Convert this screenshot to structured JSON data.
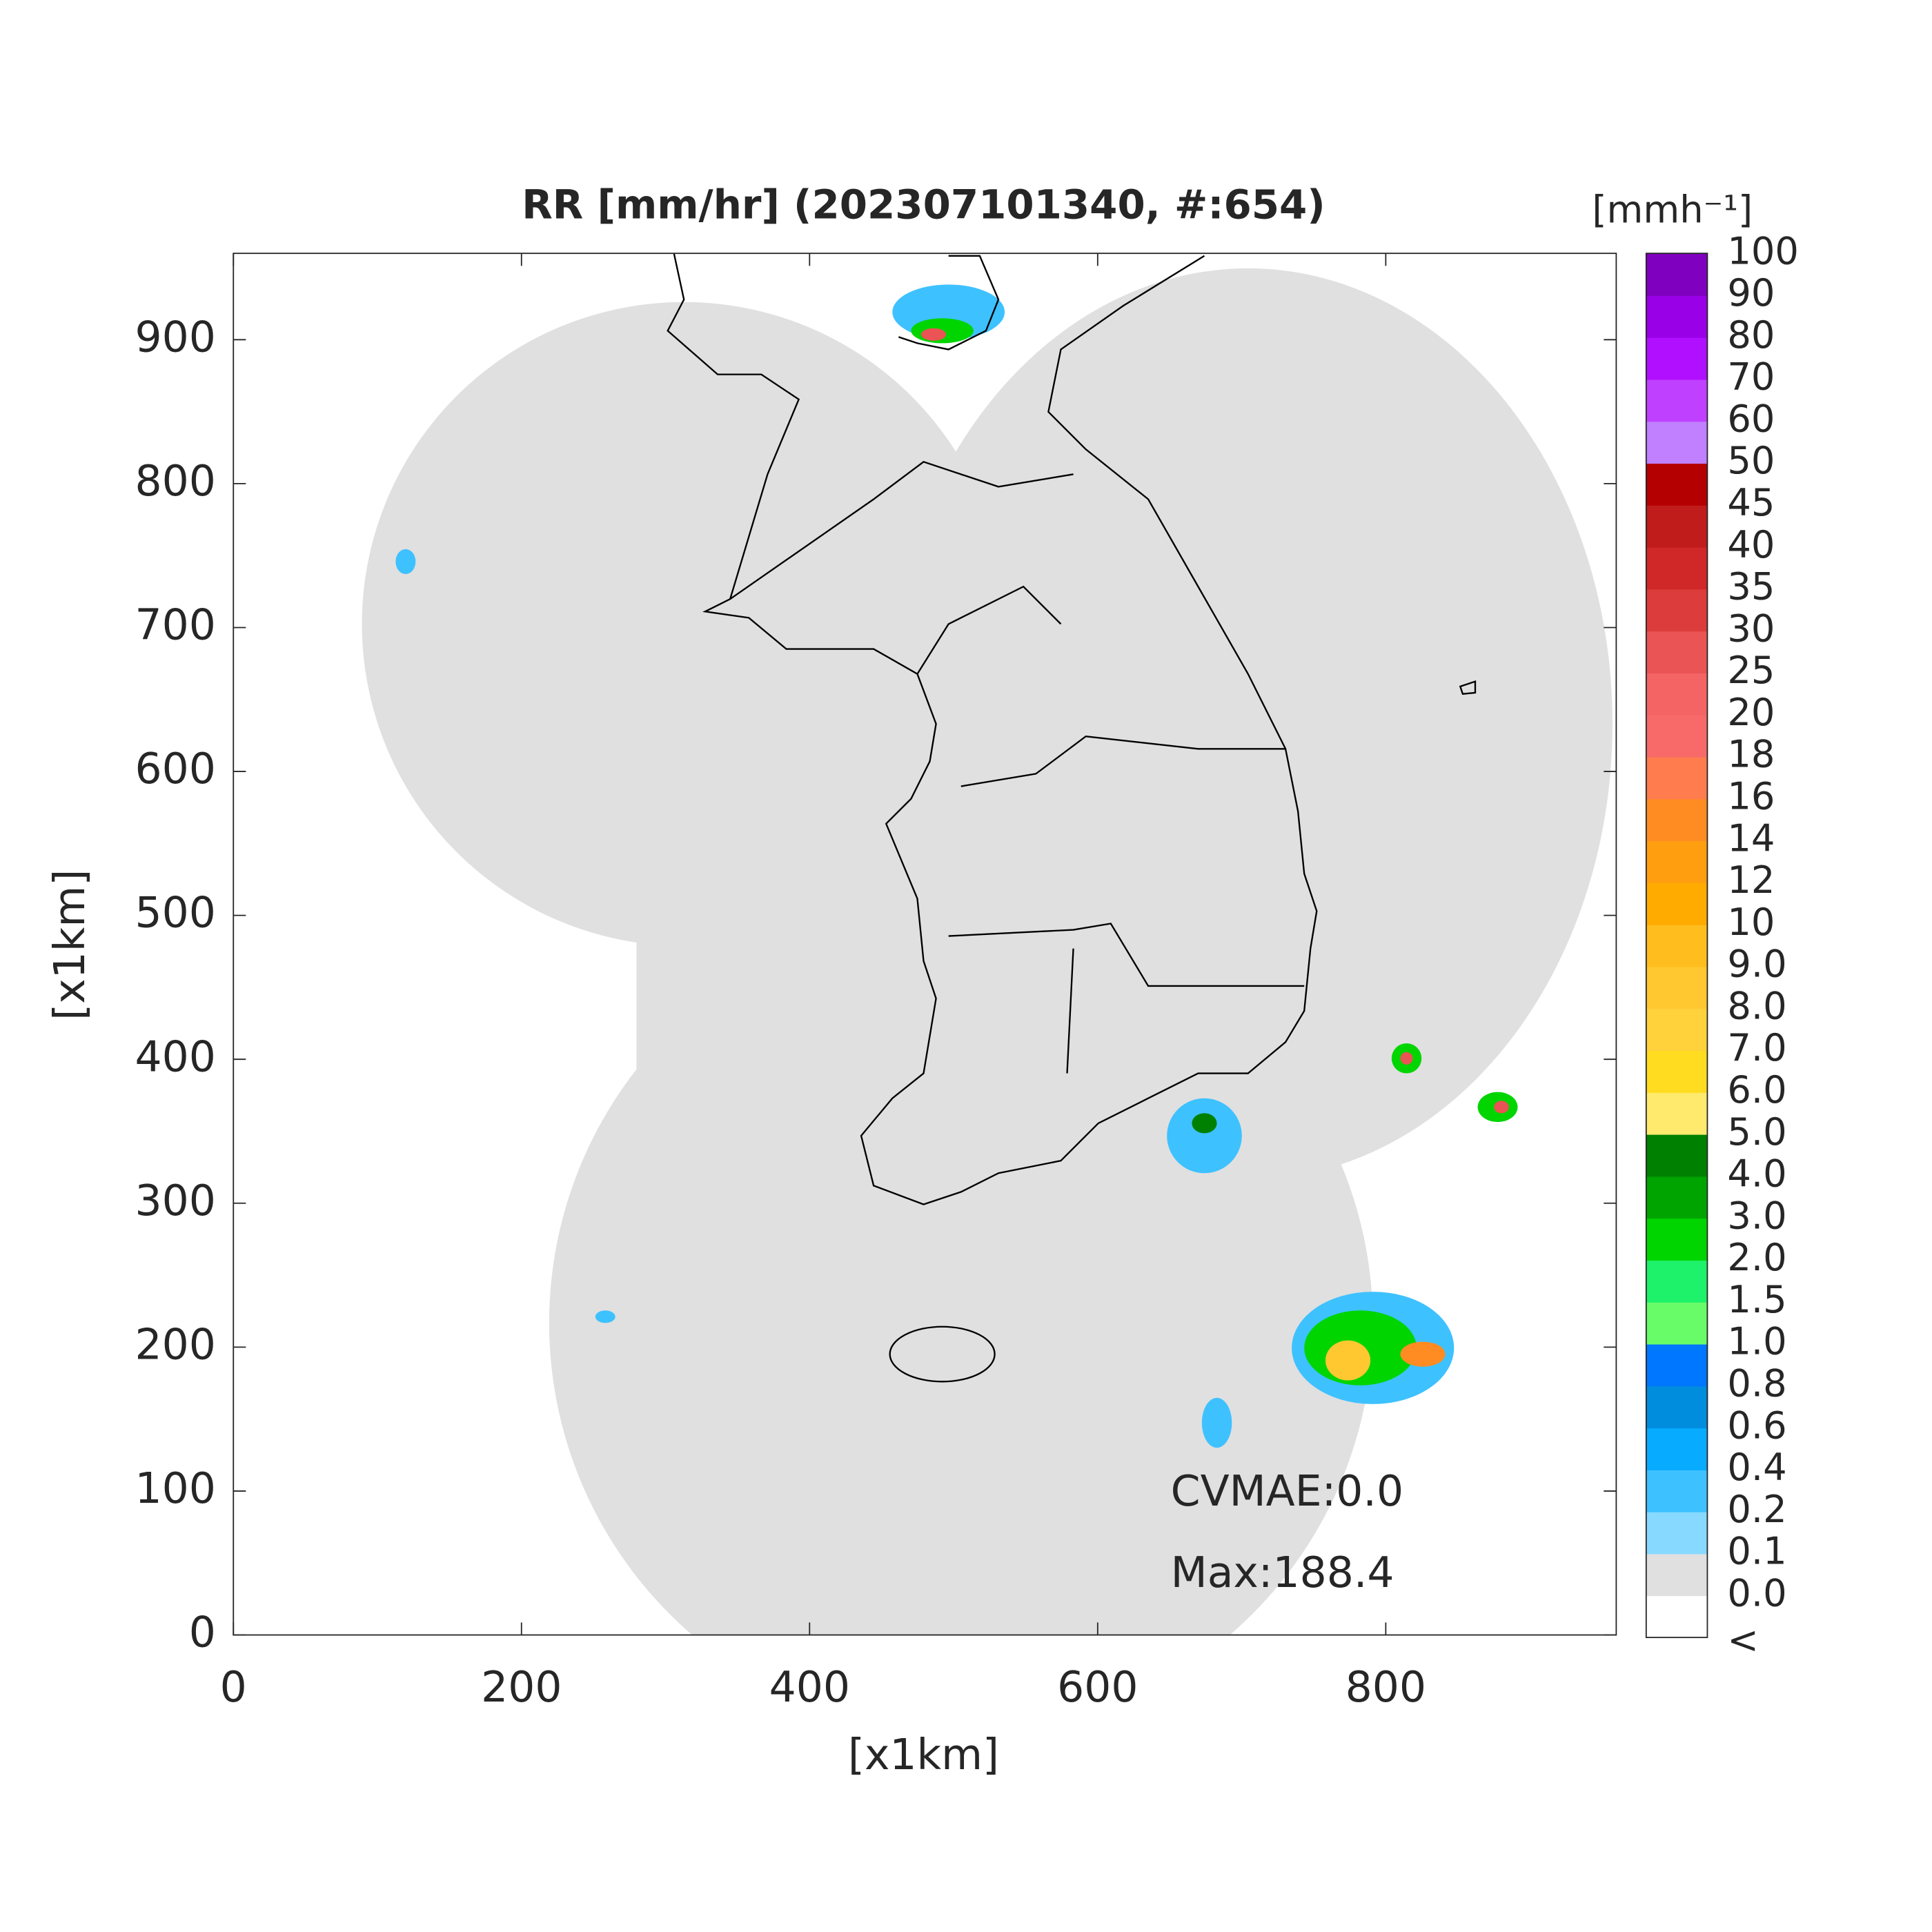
{
  "chart_data": {
    "type": "radar-map",
    "title": "RR [mm/hr] (202307101340, #:654)",
    "xlabel": "[x1km]",
    "ylabel": "[x1km]",
    "xlim": [
      0,
      960
    ],
    "ylim": [
      0,
      960
    ],
    "xticks": [
      0,
      200,
      400,
      600,
      800
    ],
    "yticks": [
      0,
      100,
      200,
      300,
      400,
      500,
      600,
      700,
      800,
      900
    ],
    "annotations": [
      "CVMAE:0.0",
      "Max:188.4"
    ],
    "colorbar": {
      "unit": "[mmh⁻¹]",
      "levels": [
        "<",
        "0.0",
        "0.1",
        "0.2",
        "0.4",
        "0.6",
        "0.8",
        "1.0",
        "1.5",
        "2.0",
        "3.0",
        "4.0",
        "5.0",
        "6.0",
        "7.0",
        "8.0",
        "9.0",
        "10",
        "12",
        "14",
        "16",
        "18",
        "20",
        "25",
        "30",
        "35",
        "40",
        "45",
        "50",
        "60",
        "70",
        "80",
        "90",
        "100"
      ],
      "colors": [
        "#ffffff",
        "#e0e0e0",
        "#87d9ff",
        "#3ec1ff",
        "#07abff",
        "#008dde",
        "#0077ff",
        "#69fc69",
        "#1ef26a",
        "#00d500",
        "#00a400",
        "#008000",
        "#ffea6e",
        "#ffdc1f",
        "#ffd23c",
        "#ffc830",
        "#ffbd1e",
        "#ffab00",
        "#ff9f10",
        "#ff8c22",
        "#ff7c4e",
        "#f86a6a",
        "#f46464",
        "#ea5454",
        "#dc3c3c",
        "#d02828",
        "#c01c1c",
        "#b40000",
        "#c080ff",
        "#c040ff",
        "#b010ff",
        "#9a00e8",
        "#8000c0",
        "#333333"
      ]
    }
  }
}
